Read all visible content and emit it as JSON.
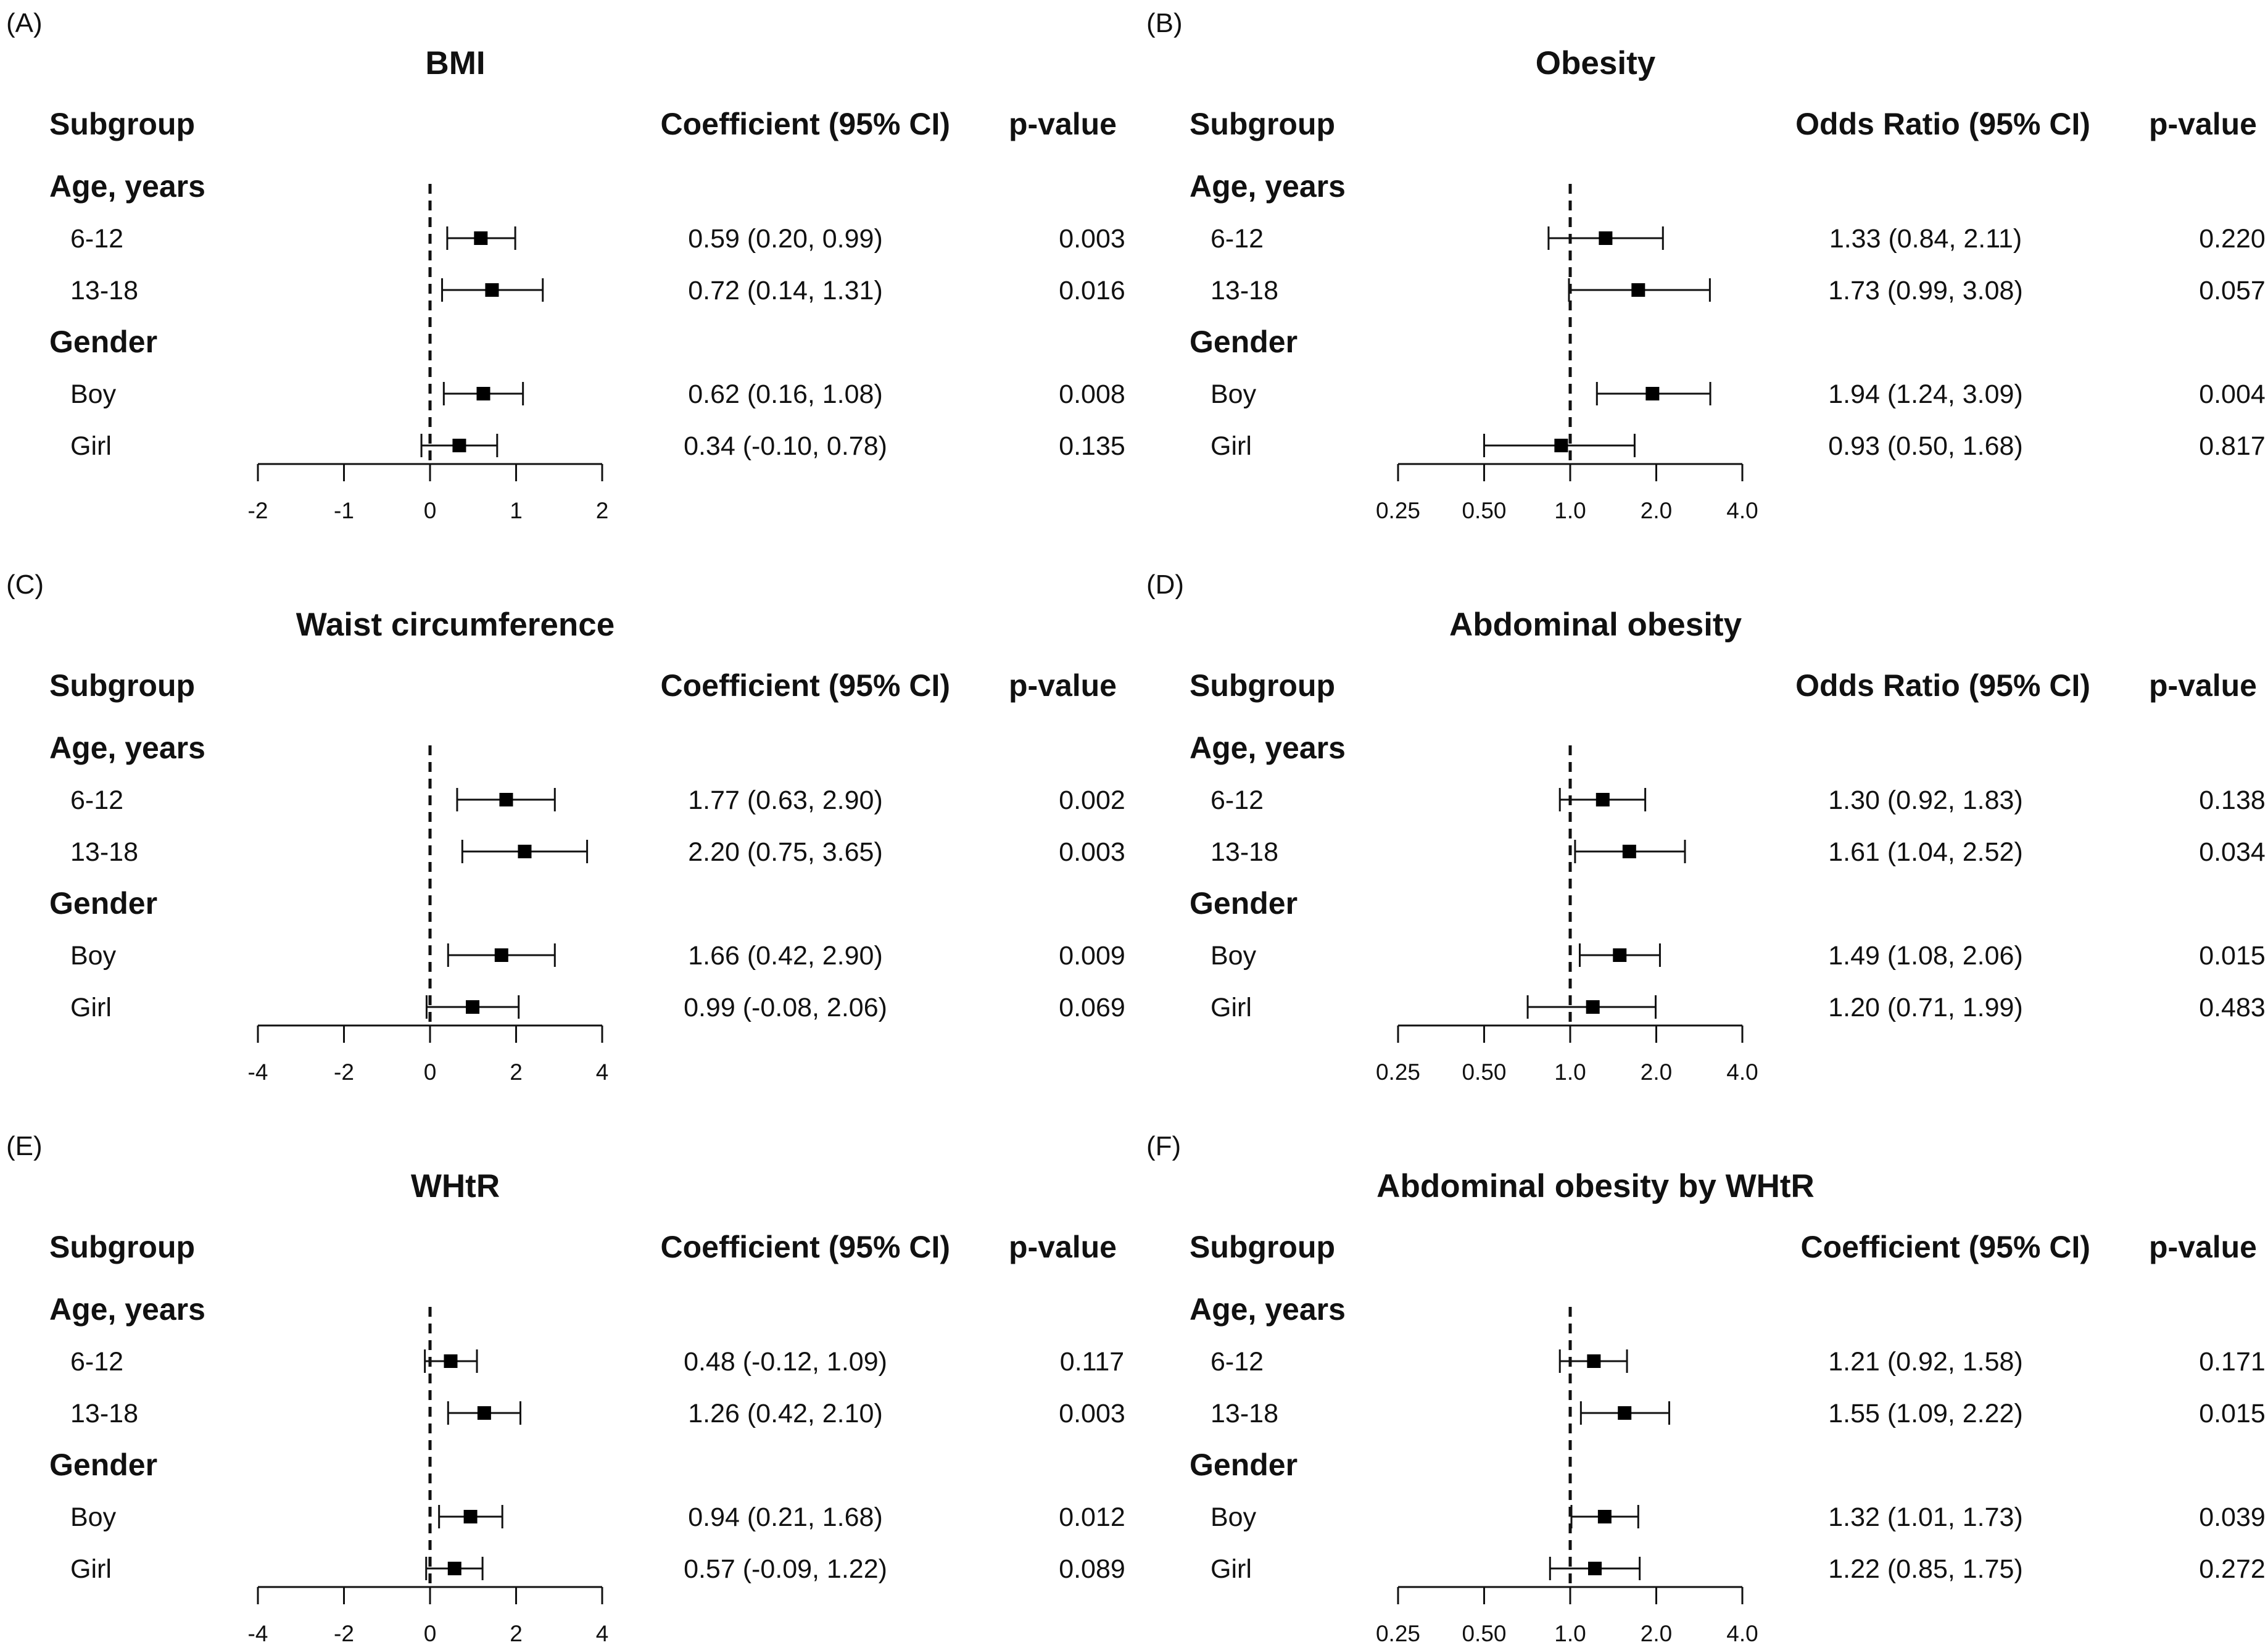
{
  "chart_data": [
    {
      "panel_label": "(A)",
      "title": "BMI",
      "type": "forest",
      "scale": "linear",
      "headers": {
        "subgroup": "Subgroup",
        "estimate": "Coefficient (95% CI)",
        "pvalue": "p-value"
      },
      "reference": 0,
      "xlim": [
        -2,
        2
      ],
      "ticks": [
        -2,
        -1,
        0,
        1,
        2
      ],
      "tick_labels": [
        "-2",
        "-1",
        "0",
        "1",
        "2"
      ],
      "groups": [
        {
          "label": "Age, years",
          "rows": [
            {
              "label": "6-12",
              "est": 0.59,
              "lo": 0.2,
              "hi": 0.99,
              "text": "0.59 (0.20, 0.99)",
              "p": "0.003"
            },
            {
              "label": "13-18",
              "est": 0.72,
              "lo": 0.14,
              "hi": 1.31,
              "text": "0.72 (0.14, 1.31)",
              "p": "0.016"
            }
          ]
        },
        {
          "label": "Gender",
          "rows": [
            {
              "label": "Boy",
              "est": 0.62,
              "lo": 0.16,
              "hi": 1.08,
              "text": "0.62 (0.16, 1.08)",
              "p": "0.008"
            },
            {
              "label": "Girl",
              "est": 0.34,
              "lo": -0.1,
              "hi": 0.78,
              "text": "0.34 (-0.10, 0.78)",
              "p": "0.135"
            }
          ]
        }
      ]
    },
    {
      "panel_label": "(B)",
      "title": "Obesity",
      "type": "forest",
      "scale": "log",
      "headers": {
        "subgroup": "Subgroup",
        "estimate": "Odds Ratio (95% CI)",
        "pvalue": "p-value"
      },
      "reference": 1,
      "xlim": [
        0.25,
        4.0
      ],
      "ticks": [
        0.25,
        0.5,
        1,
        2,
        4
      ],
      "tick_labels": [
        "0.25",
        "0.50",
        "1.0",
        "2.0",
        "4.0"
      ],
      "groups": [
        {
          "label": "Age, years",
          "rows": [
            {
              "label": "6-12",
              "est": 1.33,
              "lo": 0.84,
              "hi": 2.11,
              "text": "1.33 (0.84, 2.11)",
              "p": "0.220"
            },
            {
              "label": "13-18",
              "est": 1.73,
              "lo": 0.99,
              "hi": 3.08,
              "text": "1.73 (0.99, 3.08)",
              "p": "0.057"
            }
          ]
        },
        {
          "label": "Gender",
          "rows": [
            {
              "label": "Boy",
              "est": 1.94,
              "lo": 1.24,
              "hi": 3.09,
              "text": "1.94 (1.24, 3.09)",
              "p": "0.004"
            },
            {
              "label": "Girl",
              "est": 0.93,
              "lo": 0.5,
              "hi": 1.68,
              "text": "0.93 (0.50, 1.68)",
              "p": "0.817"
            }
          ]
        }
      ]
    },
    {
      "panel_label": "(C)",
      "title": "Waist circumference",
      "type": "forest",
      "scale": "linear",
      "headers": {
        "subgroup": "Subgroup",
        "estimate": "Coefficient (95% CI)",
        "pvalue": "p-value"
      },
      "reference": 0,
      "xlim": [
        -4,
        4
      ],
      "ticks": [
        -4,
        -2,
        0,
        2,
        4
      ],
      "tick_labels": [
        "-4",
        "-2",
        "0",
        "2",
        "4"
      ],
      "groups": [
        {
          "label": "Age, years",
          "rows": [
            {
              "label": "6-12",
              "est": 1.77,
              "lo": 0.63,
              "hi": 2.9,
              "text": "1.77 (0.63, 2.90)",
              "p": "0.002"
            },
            {
              "label": "13-18",
              "est": 2.2,
              "lo": 0.75,
              "hi": 3.65,
              "text": "2.20 (0.75, 3.65)",
              "p": "0.003"
            }
          ]
        },
        {
          "label": "Gender",
          "rows": [
            {
              "label": "Boy",
              "est": 1.66,
              "lo": 0.42,
              "hi": 2.9,
              "text": "1.66 (0.42, 2.90)",
              "p": "0.009"
            },
            {
              "label": "Girl",
              "est": 0.99,
              "lo": -0.08,
              "hi": 2.06,
              "text": "0.99 (-0.08, 2.06)",
              "p": "0.069"
            }
          ]
        }
      ]
    },
    {
      "panel_label": "(D)",
      "title": "Abdominal obesity",
      "type": "forest",
      "scale": "log",
      "headers": {
        "subgroup": "Subgroup",
        "estimate": "Odds Ratio (95% CI)",
        "pvalue": "p-value"
      },
      "reference": 1,
      "xlim": [
        0.25,
        4.0
      ],
      "ticks": [
        0.25,
        0.5,
        1,
        2,
        4
      ],
      "tick_labels": [
        "0.25",
        "0.50",
        "1.0",
        "2.0",
        "4.0"
      ],
      "groups": [
        {
          "label": "Age, years",
          "rows": [
            {
              "label": "6-12",
              "est": 1.3,
              "lo": 0.92,
              "hi": 1.83,
              "text": "1.30 (0.92, 1.83)",
              "p": "0.138"
            },
            {
              "label": "13-18",
              "est": 1.61,
              "lo": 1.04,
              "hi": 2.52,
              "text": "1.61 (1.04, 2.52)",
              "p": "0.034"
            }
          ]
        },
        {
          "label": "Gender",
          "rows": [
            {
              "label": "Boy",
              "est": 1.49,
              "lo": 1.08,
              "hi": 2.06,
              "text": "1.49 (1.08, 2.06)",
              "p": "0.015"
            },
            {
              "label": "Girl",
              "est": 1.2,
              "lo": 0.71,
              "hi": 1.99,
              "text": "1.20 (0.71, 1.99)",
              "p": "0.483"
            }
          ]
        }
      ]
    },
    {
      "panel_label": "(E)",
      "title": "WHtR",
      "type": "forest",
      "scale": "linear",
      "headers": {
        "subgroup": "Subgroup",
        "estimate": "Coefficient (95% CI)",
        "pvalue": "p-value"
      },
      "reference": 0,
      "xlim": [
        -4,
        4
      ],
      "ticks": [
        -4,
        -2,
        0,
        2,
        4
      ],
      "tick_labels": [
        "-4",
        "-2",
        "0",
        "2",
        "4"
      ],
      "groups": [
        {
          "label": "Age, years",
          "rows": [
            {
              "label": "6-12",
              "est": 0.48,
              "lo": -0.12,
              "hi": 1.09,
              "text": "0.48 (-0.12, 1.09)",
              "p": "0.117"
            },
            {
              "label": "13-18",
              "est": 1.26,
              "lo": 0.42,
              "hi": 2.1,
              "text": "1.26 (0.42, 2.10)",
              "p": "0.003"
            }
          ]
        },
        {
          "label": "Gender",
          "rows": [
            {
              "label": "Boy",
              "est": 0.94,
              "lo": 0.21,
              "hi": 1.68,
              "text": "0.94 (0.21, 1.68)",
              "p": "0.012"
            },
            {
              "label": "Girl",
              "est": 0.57,
              "lo": -0.09,
              "hi": 1.22,
              "text": "0.57 (-0.09, 1.22)",
              "p": "0.089"
            }
          ]
        }
      ]
    },
    {
      "panel_label": "(F)",
      "title": "Abdominal obesity by WHtR",
      "type": "forest",
      "scale": "log",
      "headers": {
        "subgroup": "Subgroup",
        "estimate": "Coefficient (95% CI)",
        "pvalue": "p-value"
      },
      "reference": 1,
      "xlim": [
        0.25,
        4.0
      ],
      "ticks": [
        0.25,
        0.5,
        1,
        2,
        4
      ],
      "tick_labels": [
        "0.25",
        "0.50",
        "1.0",
        "2.0",
        "4.0"
      ],
      "groups": [
        {
          "label": "Age, years",
          "rows": [
            {
              "label": "6-12",
              "est": 1.21,
              "lo": 0.92,
              "hi": 1.58,
              "text": "1.21 (0.92, 1.58)",
              "p": "0.171"
            },
            {
              "label": "13-18",
              "est": 1.55,
              "lo": 1.09,
              "hi": 2.22,
              "text": "1.55 (1.09, 2.22)",
              "p": "0.015"
            }
          ]
        },
        {
          "label": "Gender",
          "rows": [
            {
              "label": "Boy",
              "est": 1.32,
              "lo": 1.01,
              "hi": 1.73,
              "text": "1.32 (1.01, 1.73)",
              "p": "0.039"
            },
            {
              "label": "Girl",
              "est": 1.22,
              "lo": 0.85,
              "hi": 1.75,
              "text": "1.22 (0.85, 1.75)",
              "p": "0.272"
            }
          ]
        }
      ]
    }
  ]
}
